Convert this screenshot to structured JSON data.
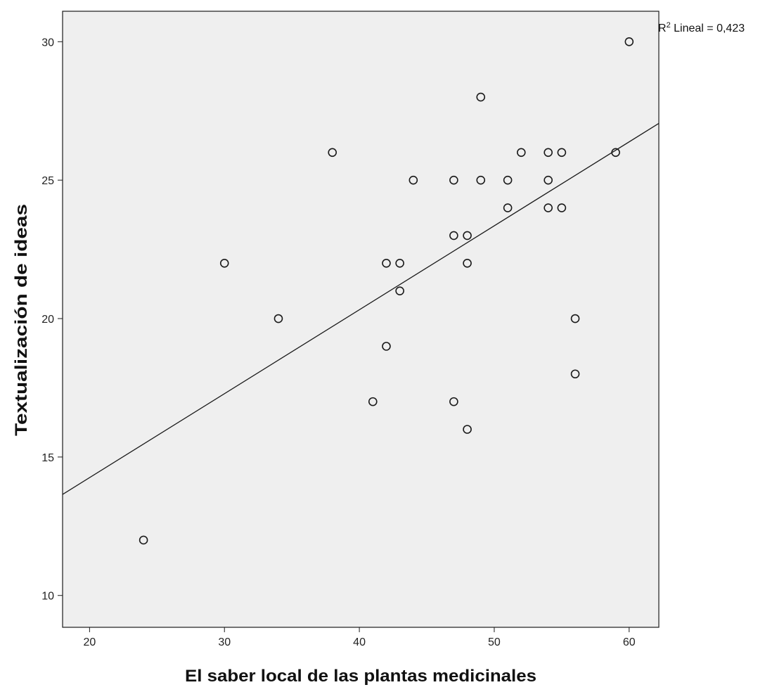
{
  "chart_data": {
    "type": "scatter",
    "title": "",
    "xlabel": "El saber local de las plantas medicinales",
    "ylabel": "Textualización de ideas",
    "xlim": [
      18,
      62.2
    ],
    "ylim": [
      8.85,
      31.1
    ],
    "xticks": [
      20,
      30,
      40,
      50,
      60
    ],
    "yticks": [
      10,
      15,
      20,
      25,
      30
    ],
    "grid": false,
    "background": "#efefef",
    "marker_color": "#1a1a1a",
    "points": [
      {
        "x": 24,
        "y": 12
      },
      {
        "x": 30,
        "y": 22
      },
      {
        "x": 34,
        "y": 20
      },
      {
        "x": 38,
        "y": 26
      },
      {
        "x": 41,
        "y": 17
      },
      {
        "x": 42,
        "y": 22
      },
      {
        "x": 42,
        "y": 19
      },
      {
        "x": 43,
        "y": 22
      },
      {
        "x": 43,
        "y": 21
      },
      {
        "x": 44,
        "y": 25
      },
      {
        "x": 47,
        "y": 25
      },
      {
        "x": 47,
        "y": 23
      },
      {
        "x": 47,
        "y": 17
      },
      {
        "x": 48,
        "y": 23
      },
      {
        "x": 48,
        "y": 22
      },
      {
        "x": 48,
        "y": 16
      },
      {
        "x": 49,
        "y": 28
      },
      {
        "x": 49,
        "y": 25
      },
      {
        "x": 51,
        "y": 25
      },
      {
        "x": 51,
        "y": 24
      },
      {
        "x": 52,
        "y": 26
      },
      {
        "x": 54,
        "y": 26
      },
      {
        "x": 54,
        "y": 25
      },
      {
        "x": 54,
        "y": 24
      },
      {
        "x": 55,
        "y": 26
      },
      {
        "x": 55,
        "y": 24
      },
      {
        "x": 56,
        "y": 20
      },
      {
        "x": 56,
        "y": 18
      },
      {
        "x": 59,
        "y": 26
      },
      {
        "x": 60,
        "y": 30
      }
    ],
    "fit_line": {
      "type": "linear",
      "label_prefix": "R",
      "label_superscript": "2",
      "label_suffix": " Lineal = 0,423",
      "x_start": 18,
      "y_start": 13.65,
      "x_end": 62.2,
      "y_end": 27.05
    }
  }
}
